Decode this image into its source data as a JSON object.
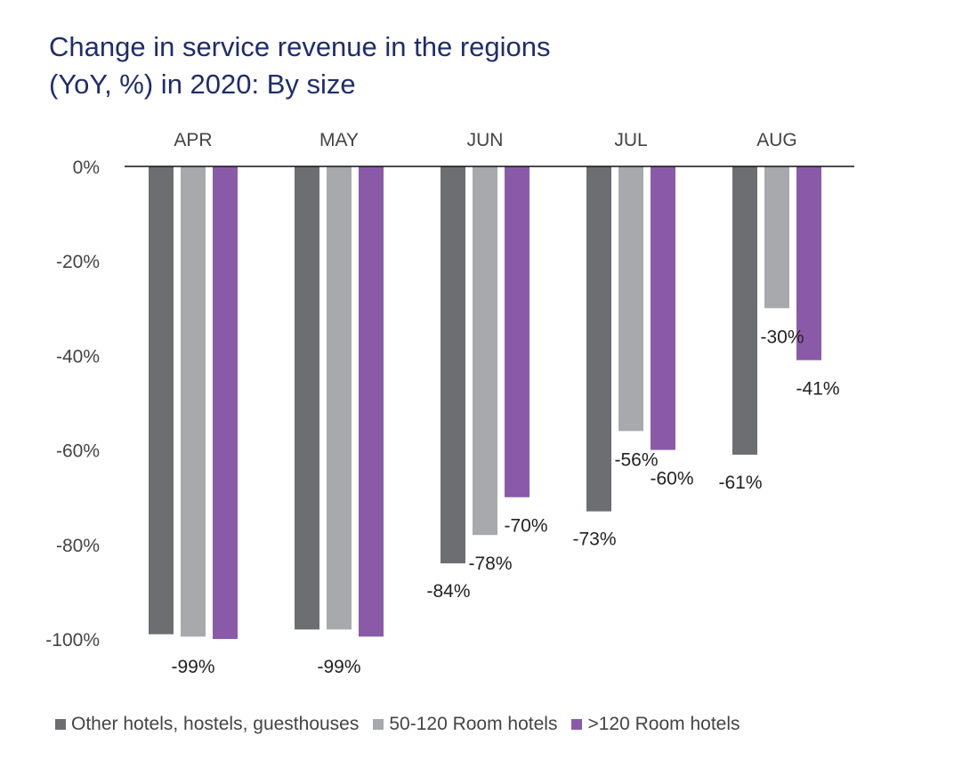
{
  "title": {
    "line1": "Change in service revenue in the regions",
    "line2": "(YoY, %) in 2020: By size"
  },
  "chart_data": {
    "type": "bar",
    "title": "Change in service revenue in the regions (YoY, %) in 2020: By size",
    "categories": [
      "APR",
      "MAY",
      "JUN",
      "JUL",
      "AUG"
    ],
    "series": [
      {
        "name": "Other hotels, hostels, guesthouses",
        "color": "#6d6e71",
        "values": [
          -99,
          -98,
          -84,
          -73,
          -61
        ]
      },
      {
        "name": "50-120 Room hotels",
        "color": "#a7a9ac",
        "values": [
          -99.5,
          -98,
          -78,
          -56,
          -30
        ]
      },
      {
        "name": ">120 Room hotels",
        "color": "#8a5aa8",
        "values": [
          -100,
          -99.5,
          -70,
          -60,
          -41
        ]
      }
    ],
    "data_labels": [
      {
        "category": "APR",
        "text": "-99%"
      },
      {
        "category": "MAY",
        "text": "-99%"
      },
      {
        "category": "JUN",
        "series": 0,
        "text": "-84%"
      },
      {
        "category": "JUN",
        "series": 1,
        "text": "-78%"
      },
      {
        "category": "JUN",
        "series": 2,
        "text": "-70%"
      },
      {
        "category": "JUL",
        "series": 0,
        "text": "-73%"
      },
      {
        "category": "JUL",
        "series": 1,
        "text": "-56%"
      },
      {
        "category": "JUL",
        "series": 2,
        "text": "-60%"
      },
      {
        "category": "AUG",
        "series": 0,
        "text": "-61%"
      },
      {
        "category": "AUG",
        "series": 1,
        "text": "-30%"
      },
      {
        "category": "AUG",
        "series": 2,
        "text": "-41%"
      }
    ],
    "y_ticks": [
      "0%",
      "-20%",
      "-40%",
      "-60%",
      "-80%",
      "-100%"
    ],
    "ylim": [
      -100,
      0
    ],
    "grid": false,
    "legend_position": "bottom"
  }
}
